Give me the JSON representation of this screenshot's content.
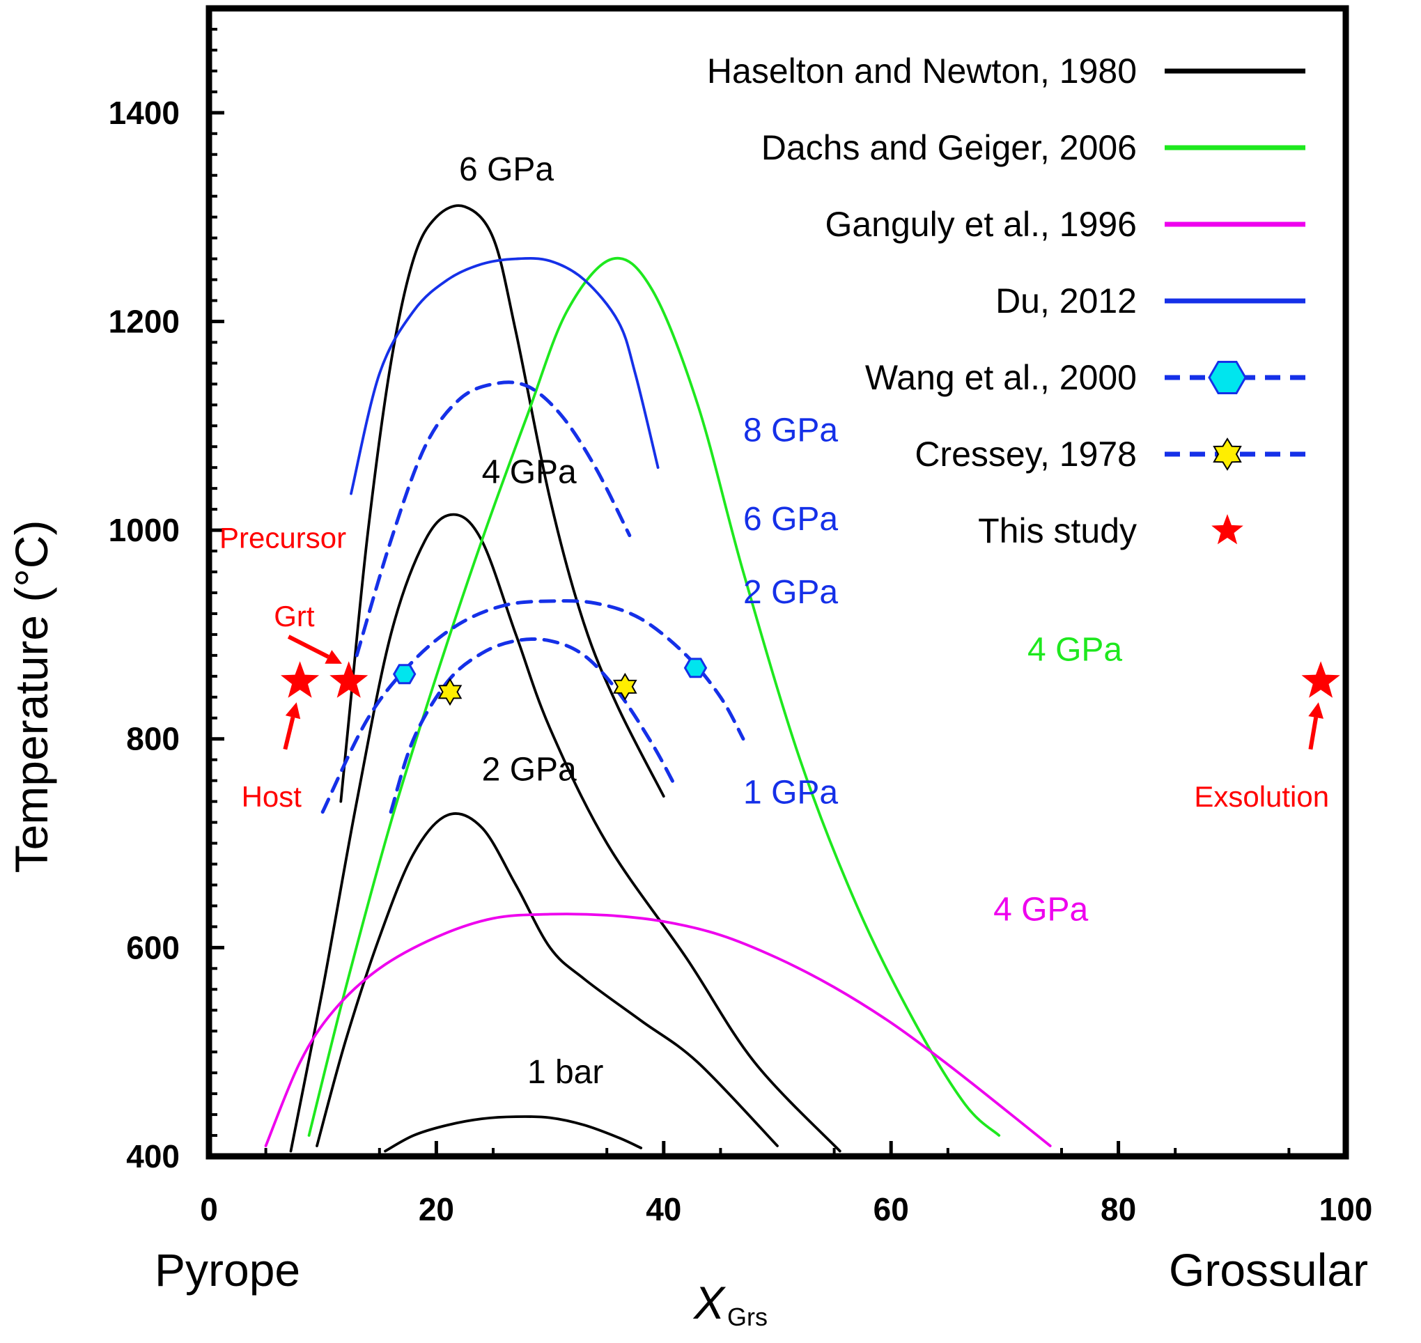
{
  "chart_data": {
    "type": "line",
    "xlabel": "X",
    "xlabel_sub": "Grs",
    "ylabel": "Temperature (°C)",
    "xlim": [
      0,
      100
    ],
    "ylim": [
      400,
      1500
    ],
    "xticks": [
      0,
      20,
      40,
      60,
      80,
      100
    ],
    "yticks": [
      400,
      600,
      800,
      1000,
      1200,
      1400
    ],
    "x_end_labels": {
      "left": "Pyrope",
      "right": "Grossular"
    },
    "colors": {
      "black": "#000000",
      "green": "#1ee81e",
      "magenta": "#ee00ee",
      "blue": "#1530e8",
      "red": "#ff0000",
      "cyan": "#00e5ee",
      "yellow": "#ffee00"
    },
    "legend": [
      {
        "label": "Haselton and Newton, 1980",
        "color": "#000000",
        "style": "solid",
        "marker": ""
      },
      {
        "label": "Dachs and Geiger, 2006",
        "color": "#1ee81e",
        "style": "solid",
        "marker": ""
      },
      {
        "label": "Ganguly et al., 1996",
        "color": "#ee00ee",
        "style": "solid",
        "marker": ""
      },
      {
        "label": "Du, 2012",
        "color": "#1530e8",
        "style": "solid",
        "marker": ""
      },
      {
        "label": "Wang et al., 2000",
        "color": "#1530e8",
        "style": "dashed",
        "marker": "hexagon"
      },
      {
        "label": "Cressey, 1978",
        "color": "#1530e8",
        "style": "dashed",
        "marker": "star6"
      },
      {
        "label": "This study",
        "color": "#ff0000",
        "style": "none",
        "marker": "star5"
      }
    ],
    "series": [
      {
        "name": "Haselton and Newton, 1980 - 1 bar",
        "label": "1 bar",
        "label_at": [
          28,
          470
        ],
        "color": "#000000",
        "dash": false,
        "x": [
          15.5,
          18,
          21,
          24,
          27,
          30,
          33,
          36,
          38
        ],
        "y": [
          405,
          420,
          430,
          436,
          438,
          437,
          430,
          418,
          408
        ]
      },
      {
        "name": "Haselton and Newton, 1980 - 2 GPa",
        "label": "2 GPa",
        "label_at": [
          24,
          760
        ],
        "color": "#000000",
        "dash": false,
        "x": [
          9.5,
          12,
          15,
          18,
          21,
          24,
          27,
          30,
          33,
          38,
          43,
          50
        ],
        "y": [
          410,
          510,
          610,
          690,
          727,
          715,
          660,
          600,
          570,
          530,
          490,
          410
        ]
      },
      {
        "name": "Haselton and Newton, 1980 - 4 GPa",
        "label": "4 GPa",
        "label_at": [
          24,
          1045
        ],
        "color": "#000000",
        "dash": false,
        "x": [
          7.2,
          10,
          13,
          16,
          19,
          21.5,
          24,
          27,
          30,
          35,
          42,
          48,
          55.5
        ],
        "y": [
          405,
          560,
          740,
          900,
          990,
          1015,
          990,
          900,
          810,
          700,
          590,
          490,
          405
        ]
      },
      {
        "name": "Haselton and Newton, 1980 - 6 GPa",
        "label": "6 GPa",
        "label_at": [
          22,
          1335
        ],
        "color": "#000000",
        "dash": false,
        "x": [
          11.6,
          12.5,
          14,
          16,
          18,
          20,
          22.5,
          25,
          27,
          30,
          33,
          36,
          40
        ],
        "y": [
          740,
          840,
          1000,
          1160,
          1260,
          1300,
          1310,
          1280,
          1190,
          1030,
          910,
          830,
          745
        ]
      },
      {
        "name": "Dachs and Geiger, 2006 - 4 GPa",
        "label": "4 GPa",
        "label_at": [
          72,
          875
        ],
        "color": "#1ee81e",
        "dash": false,
        "x": [
          8.8,
          12,
          16,
          20,
          24,
          28,
          31.5,
          35.5,
          39,
          43,
          47,
          52,
          57,
          62,
          66.5,
          69.5
        ],
        "y": [
          420,
          560,
          720,
          860,
          990,
          1110,
          1210,
          1260,
          1230,
          1120,
          960,
          780,
          640,
          530,
          450,
          420
        ]
      },
      {
        "name": "Ganguly et al., 1996 - 4 GPa",
        "label": "4 GPa",
        "label_at": [
          69,
          626
        ],
        "color": "#ee00ee",
        "dash": false,
        "x": [
          5,
          8,
          11,
          15,
          20,
          25,
          30,
          35,
          40,
          45,
          50,
          55,
          60,
          65,
          70,
          74
        ],
        "y": [
          410,
          490,
          540,
          580,
          610,
          628,
          632,
          631,
          625,
          612,
          590,
          562,
          528,
          488,
          445,
          410
        ]
      },
      {
        "name": "Du, 2012 - 8 GPa",
        "label": "8 GPa",
        "label_at": [
          47,
          1085
        ],
        "color": "#1530e8",
        "dash": false,
        "x": [
          12.5,
          15,
          18,
          21,
          24,
          27,
          30,
          33,
          36,
          37.5,
          39.5
        ],
        "y": [
          1035,
          1150,
          1210,
          1240,
          1255,
          1260,
          1258,
          1240,
          1200,
          1150,
          1060
        ]
      },
      {
        "name": "Wang et al., 2000 - 6 GPa",
        "label": "6 GPa",
        "label_at": [
          47,
          1000
        ],
        "color": "#1530e8",
        "dash": true,
        "x": [
          13,
          16,
          19,
          22,
          25,
          28,
          31,
          34,
          37
        ],
        "y": [
          880,
          990,
          1080,
          1125,
          1140,
          1138,
          1110,
          1060,
          995
        ]
      },
      {
        "name": "Wang et al., 2000 - 2 GPa",
        "label": "2 GPa",
        "label_at": [
          47,
          930
        ],
        "color": "#1530e8",
        "dash": true,
        "x": [
          10,
          14,
          18,
          22,
          26,
          30,
          34,
          38,
          42,
          45,
          47
        ],
        "y": [
          730,
          820,
          875,
          910,
          928,
          932,
          930,
          915,
          880,
          840,
          800
        ]
      },
      {
        "name": "Cressey, 1978 - 1 GPa",
        "label": "1 GPa",
        "label_at": [
          47,
          738
        ],
        "color": "#1530e8",
        "dash": true,
        "x": [
          16,
          18,
          21,
          24,
          27,
          30,
          33,
          36,
          39,
          41
        ],
        "y": [
          730,
          800,
          855,
          882,
          894,
          894,
          880,
          845,
          795,
          755
        ]
      }
    ],
    "markers": [
      {
        "series": "Wang et al., 2000",
        "shape": "hexagon",
        "color": "#00e5ee",
        "points": [
          [
            17.2,
            862
          ],
          [
            42.8,
            868
          ]
        ]
      },
      {
        "series": "Cressey, 1978",
        "shape": "star6",
        "color": "#ffee00",
        "points": [
          [
            21.2,
            845
          ],
          [
            36.6,
            850
          ]
        ]
      },
      {
        "series": "This study",
        "shape": "star5",
        "color": "#ff0000",
        "points": [
          [
            8,
            855
          ],
          [
            12.3,
            855
          ],
          [
            97.8,
            855
          ]
        ]
      }
    ],
    "annotations": [
      {
        "text": "Precursor",
        "x": 6.5,
        "y": 983
      },
      {
        "text": "Grt",
        "x": 7.5,
        "y": 908
      },
      {
        "text": "Host",
        "x": 5.5,
        "y": 735
      },
      {
        "text": "Exsolution",
        "x": 92.6,
        "y": 735
      }
    ]
  }
}
